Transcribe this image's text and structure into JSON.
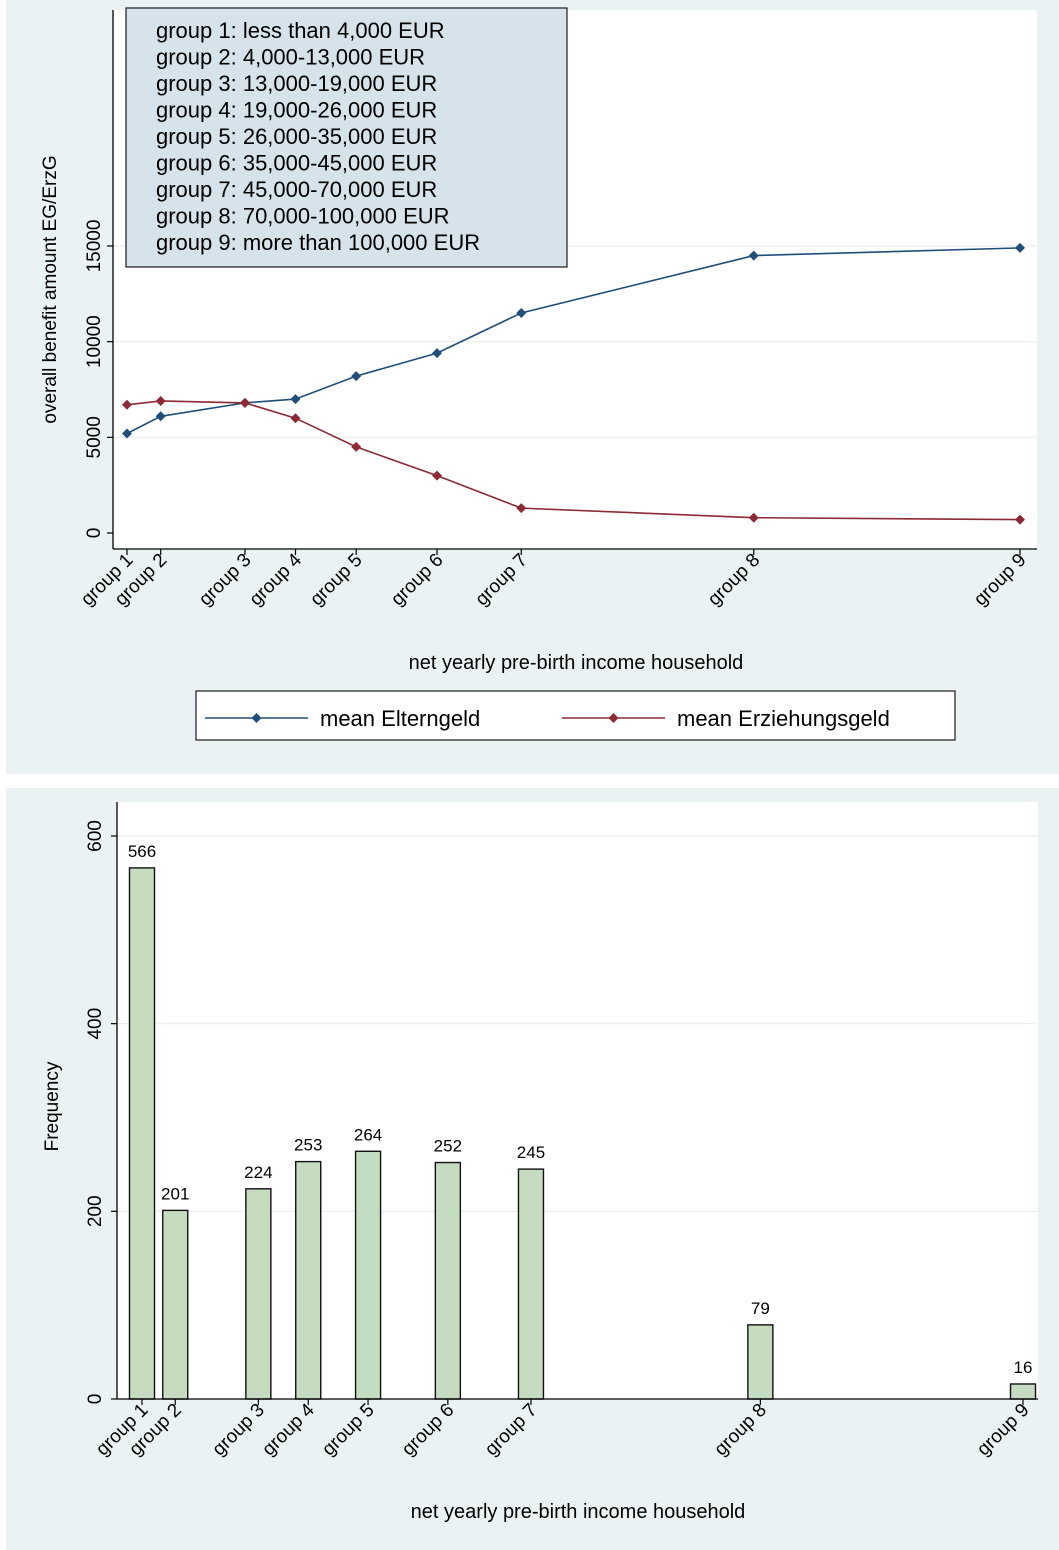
{
  "charts": {
    "line": {
      "type": "line",
      "ylabel": "overall benefit amount EG/ErzG",
      "xlabel": "net yearly pre-birth income household",
      "ylim": [
        0,
        20000
      ],
      "yticks": [
        0,
        5000,
        10000,
        15000
      ],
      "grid": true,
      "categories": [
        "group 1",
        "group 2",
        "group 3",
        "group 4",
        "group 5",
        "group 6",
        "group 7",
        "group 8",
        "group 9"
      ],
      "x_positions": [
        1,
        2,
        4.5,
        6,
        7.8,
        10.2,
        12.7,
        19.6,
        27.5
      ],
      "series": [
        {
          "name": "mean Elterngeld",
          "color": "#1f4e79",
          "values": [
            5200,
            6100,
            6800,
            7000,
            8200,
            9400,
            11500,
            14500,
            14900
          ]
        },
        {
          "name": "mean Erziehungsgeld",
          "color": "#8c2a35",
          "values": [
            6700,
            6900,
            6800,
            6000,
            4500,
            3000,
            1300,
            800,
            700
          ]
        }
      ],
      "legend_placement": "bottom",
      "note_box": [
        "group 1: less than 4,000 EUR",
        "group 2: 4,000-13,000 EUR",
        "group 3: 13,000-19,000 EUR",
        "group 4: 19,000-26,000 EUR",
        "group 5: 26,000-35,000 EUR",
        "group 6: 35,000-45,000 EUR",
        "group 7: 45,000-70,000 EUR",
        "group 8: 70,000-100,000 EUR",
        "group 9: more than 100,000 EUR"
      ]
    },
    "bar": {
      "type": "bar",
      "ylabel": "Frequency",
      "xlabel": "net yearly pre-birth income household",
      "ylim": [
        0,
        620
      ],
      "yticks": [
        0,
        200,
        400,
        600
      ],
      "grid": true,
      "categories": [
        "group 1",
        "group 2",
        "group 3",
        "group 4",
        "group 5",
        "group 6",
        "group 7",
        "group 8",
        "group 9"
      ],
      "x_positions": [
        1,
        2,
        4.5,
        6,
        7.8,
        10.2,
        12.7,
        19.6,
        27.5
      ],
      "values": [
        566,
        201,
        224,
        253,
        264,
        252,
        245,
        79,
        16
      ],
      "bar_color": "#c6dcc1"
    }
  }
}
